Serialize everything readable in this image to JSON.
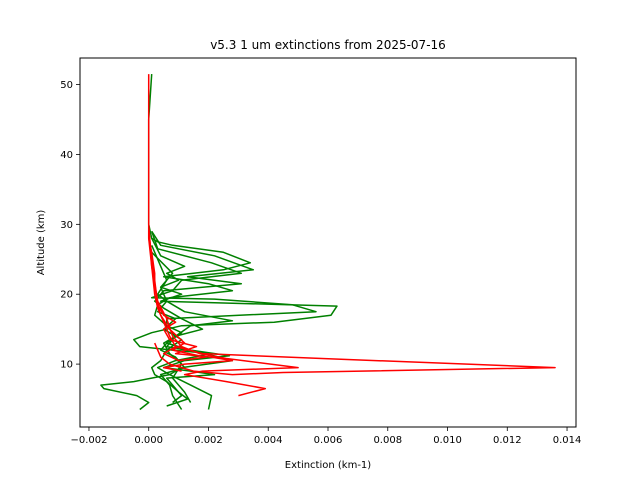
{
  "chart_data": {
    "type": "line",
    "title": "v5.3 1 um extinctions from 2025-07-16",
    "xlabel": "Extinction (km-1)",
    "ylabel": "Altitude (km)",
    "xlim": [
      -0.0023,
      0.0143
    ],
    "ylim": [
      1.0,
      53.8
    ],
    "xticks": [
      -0.002,
      0.0,
      0.002,
      0.004,
      0.006,
      0.008,
      0.01,
      0.012,
      0.014
    ],
    "xtick_labels": [
      "−0.002",
      "0.000",
      "0.002",
      "0.004",
      "0.006",
      "0.008",
      "0.010",
      "0.012",
      "0.014"
    ],
    "yticks": [
      10,
      20,
      30,
      40,
      50
    ],
    "ytick_labels": [
      "10",
      "20",
      "30",
      "40",
      "50"
    ],
    "grid": false,
    "colors": {
      "green": "#008000",
      "red": "#ff0000"
    },
    "series": [
      {
        "color": "green",
        "points": [
          [
            0.0001,
            51.5
          ],
          [
            0.0,
            45
          ],
          [
            0.0,
            36.5
          ],
          [
            0.0,
            30
          ],
          [
            0.0001,
            28
          ],
          [
            0.0003,
            27.5
          ],
          [
            0.0008,
            27
          ],
          [
            0.0025,
            26
          ],
          [
            0.0034,
            24.5
          ],
          [
            0.0025,
            23.5
          ],
          [
            0.0005,
            22.5
          ],
          [
            0.002,
            21.5
          ],
          [
            0.0028,
            20.5
          ],
          [
            0.0007,
            19.5
          ],
          [
            0.0003,
            18.5
          ],
          [
            0.0002,
            17
          ],
          [
            0.0006,
            15.5
          ],
          [
            0.0009,
            14
          ],
          [
            0.0005,
            13
          ],
          [
            0.0007,
            11.5
          ],
          [
            0.0011,
            10
          ],
          [
            0.0008,
            8
          ],
          [
            0.0012,
            6
          ],
          [
            0.0014,
            4.5
          ]
        ]
      },
      {
        "color": "green",
        "points": [
          [
            0.0001,
            29
          ],
          [
            0.0004,
            27
          ],
          [
            0.0022,
            25.5
          ],
          [
            0.0035,
            23.5
          ],
          [
            0.0013,
            22.5
          ],
          [
            0.0031,
            21.5
          ],
          [
            0.0005,
            20.5
          ],
          [
            0.0002,
            19
          ],
          [
            0.0005,
            18
          ],
          [
            0.0011,
            16.5
          ],
          [
            0.0018,
            15
          ],
          [
            0.0009,
            14
          ],
          [
            0.0006,
            12.5
          ],
          [
            0.0019,
            11.5
          ],
          [
            0.0028,
            10.5
          ],
          [
            0.0011,
            9.5
          ],
          [
            0.0007,
            8.5
          ],
          [
            0.0014,
            7
          ],
          [
            0.0021,
            5.5
          ],
          [
            0.002,
            3.5
          ]
        ]
      },
      {
        "color": "green",
        "points": [
          [
            0.0001,
            29
          ],
          [
            0.0003,
            26.5
          ],
          [
            0.0021,
            24.5
          ],
          [
            0.0031,
            23
          ],
          [
            0.0011,
            22
          ],
          [
            0.0008,
            20.5
          ],
          [
            0.0001,
            19.5
          ],
          [
            0.0022,
            19.3
          ],
          [
            0.0048,
            18.5
          ],
          [
            0.0056,
            17.5
          ],
          [
            0.0006,
            16.5
          ],
          [
            0.0006,
            15.5
          ],
          [
            0.0011,
            14.5
          ],
          [
            0.0006,
            13
          ],
          [
            0.0004,
            12
          ],
          [
            0.0009,
            11
          ],
          [
            0.0012,
            9.5
          ],
          [
            0.0004,
            8.5
          ],
          [
            0.0007,
            7
          ],
          [
            0.0008,
            5.5
          ],
          [
            0.0011,
            3.5
          ]
        ]
      },
      {
        "color": "green",
        "points": [
          [
            0.0001,
            28
          ],
          [
            0.0004,
            25.5
          ],
          [
            0.0012,
            24
          ],
          [
            0.0006,
            23
          ],
          [
            0.001,
            22
          ],
          [
            0.0004,
            21
          ],
          [
            0.0011,
            20
          ],
          [
            0.0004,
            19
          ],
          [
            0.0063,
            18.3
          ],
          [
            0.0061,
            17
          ],
          [
            0.0042,
            16
          ],
          [
            0.0011,
            15.5
          ],
          [
            0.0001,
            14.5
          ],
          [
            -0.0005,
            13.5
          ],
          [
            -0.0003,
            12.5
          ],
          [
            0.0008,
            12
          ],
          [
            0.0021,
            11.5
          ],
          [
            0.0009,
            10.5
          ],
          [
            0.0003,
            9.5
          ],
          [
            0.0007,
            8.5
          ],
          [
            -0.0005,
            7.5
          ],
          [
            -0.0016,
            7
          ],
          [
            -0.0015,
            6.5
          ],
          [
            -0.0004,
            5.5
          ],
          [
            0.0,
            4.5
          ],
          [
            -0.0003,
            3.5
          ]
        ]
      },
      {
        "color": "green",
        "points": [
          [
            0.0001,
            27
          ],
          [
            0.0004,
            24
          ],
          [
            0.0006,
            22
          ],
          [
            0.0003,
            20
          ],
          [
            0.0006,
            19
          ],
          [
            0.0012,
            17.5
          ],
          [
            0.0028,
            16.2
          ],
          [
            0.0014,
            15.5
          ],
          [
            0.0009,
            14
          ],
          [
            0.0006,
            13
          ],
          [
            0.0014,
            12
          ],
          [
            0.0027,
            11.2
          ],
          [
            0.0012,
            10.5
          ],
          [
            0.0005,
            9.5
          ],
          [
            0.0014,
            9
          ],
          [
            0.0022,
            8.5
          ],
          [
            0.0006,
            8
          ],
          [
            0.0009,
            6.5
          ],
          [
            0.0011,
            5.5
          ],
          [
            0.0008,
            4.5
          ]
        ]
      },
      {
        "color": "green",
        "points": [
          [
            0.0001,
            26
          ],
          [
            0.0008,
            23
          ],
          [
            0.0004,
            21
          ],
          [
            0.0006,
            19
          ],
          [
            0.0003,
            17.5
          ],
          [
            0.0009,
            16.5
          ],
          [
            0.0005,
            15
          ],
          [
            0.0011,
            13.5
          ],
          [
            0.0006,
            12
          ],
          [
            0.0004,
            10.5
          ],
          [
            0.0001,
            9.5
          ],
          [
            0.0002,
            8.5
          ],
          [
            0.0006,
            7.5
          ],
          [
            0.001,
            6
          ],
          [
            0.0013,
            5
          ],
          [
            0.0006,
            4
          ]
        ]
      },
      {
        "color": "red",
        "points": [
          [
            0.0,
            51.5
          ],
          [
            0.0,
            45
          ],
          [
            0.0,
            38
          ],
          [
            0.0,
            32
          ],
          [
            0.0,
            28
          ],
          [
            0.0001,
            26
          ],
          [
            0.0002,
            23
          ],
          [
            0.0002,
            20
          ],
          [
            0.0003,
            18
          ],
          [
            0.0005,
            16
          ],
          [
            0.0007,
            14
          ],
          [
            0.0009,
            12.5
          ],
          [
            0.0018,
            11.5
          ],
          [
            0.0058,
            10.8
          ],
          [
            0.0136,
            9.5
          ],
          [
            0.0045,
            8.8
          ],
          [
            0.0028,
            8.5
          ],
          [
            0.0015,
            9
          ],
          [
            0.0007,
            10
          ],
          [
            0.0004,
            11
          ],
          [
            0.0003,
            12
          ],
          [
            0.0002,
            13
          ]
        ]
      },
      {
        "color": "red",
        "points": [
          [
            0.0,
            30
          ],
          [
            0.0001,
            24
          ],
          [
            0.0003,
            19
          ],
          [
            0.0006,
            16.5
          ],
          [
            0.0008,
            14
          ],
          [
            0.0011,
            12.5
          ],
          [
            0.0017,
            11.5
          ],
          [
            0.0026,
            10.8
          ],
          [
            0.005,
            9.5
          ],
          [
            0.0018,
            9
          ],
          [
            0.0012,
            8.5
          ],
          [
            0.0026,
            7.5
          ],
          [
            0.0039,
            6.5
          ],
          [
            0.003,
            5.5
          ]
        ]
      },
      {
        "color": "red",
        "points": [
          [
            0.0,
            29
          ],
          [
            0.0002,
            22
          ],
          [
            0.0003,
            18.5
          ],
          [
            0.0005,
            17
          ],
          [
            0.0009,
            16
          ],
          [
            0.0005,
            15
          ],
          [
            0.0007,
            13.5
          ],
          [
            0.0016,
            12.5
          ],
          [
            0.0009,
            11.5
          ],
          [
            0.0021,
            11
          ],
          [
            0.0028,
            10.5
          ],
          [
            0.0012,
            10
          ],
          [
            0.0005,
            9.5
          ],
          [
            0.0011,
            9
          ]
        ]
      },
      {
        "color": "red",
        "points": [
          [
            0.0,
            28
          ],
          [
            0.0002,
            20
          ],
          [
            0.0004,
            17
          ],
          [
            0.0007,
            15
          ],
          [
            0.0012,
            13
          ],
          [
            0.0008,
            12
          ],
          [
            0.0019,
            11
          ],
          [
            0.001,
            10.5
          ],
          [
            0.0005,
            11.5
          ],
          [
            0.0009,
            12.5
          ]
        ]
      }
    ]
  }
}
